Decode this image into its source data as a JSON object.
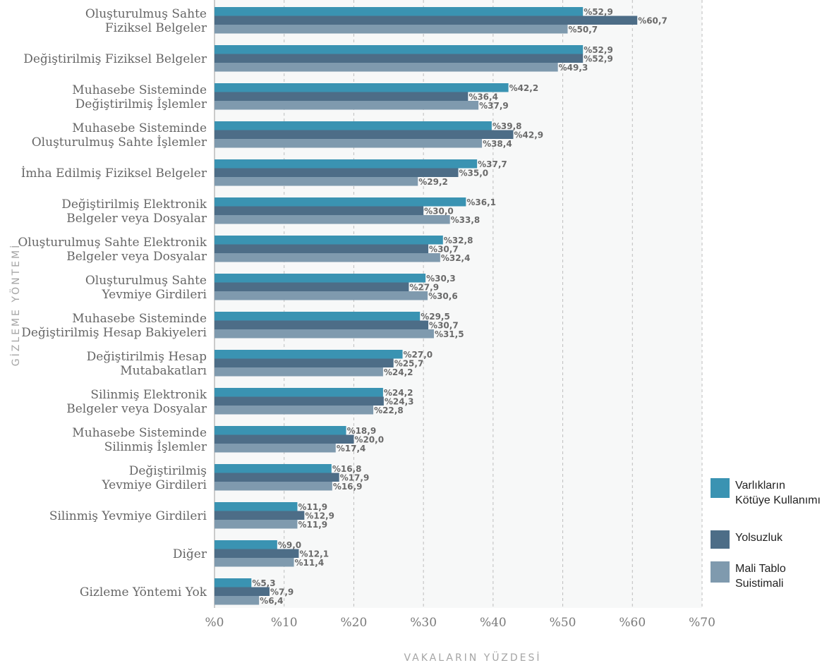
{
  "chart_data": {
    "type": "bar",
    "orientation": "horizontal",
    "xlabel": "VAKALARIN YÜZDESİ",
    "ylabel": "GİZLEME YÖNTEMİ",
    "xlim": [
      0,
      70
    ],
    "xticks": [
      "%0",
      "%10",
      "%20",
      "%30",
      "%40",
      "%50",
      "%60",
      "%70"
    ],
    "grid": "vertical-dashed",
    "legend_position": "right",
    "categories": [
      [
        "Oluşturulmuş Sahte",
        "Fiziksel Belgeler"
      ],
      [
        "Değiştirilmiş Fiziksel Belgeler"
      ],
      [
        "Muhasebe Sisteminde",
        "Değiştirilmiş İşlemler"
      ],
      [
        "Muhasebe Sisteminde",
        "Oluşturulmuş Sahte İşlemler"
      ],
      [
        "İmha Edilmiş Fiziksel Belgeler"
      ],
      [
        "Değiştirilmiş Elektronik",
        "Belgeler veya Dosyalar"
      ],
      [
        "Oluşturulmuş Sahte Elektronik",
        "Belgeler veya Dosyalar"
      ],
      [
        "Oluşturulmuş Sahte",
        "Yevmiye Girdileri"
      ],
      [
        "Muhasebe Sisteminde",
        "Değiştirilmiş Hesap Bakiyeleri"
      ],
      [
        "Değiştirilmiş Hesap",
        "Mutabakatları"
      ],
      [
        "Silinmiş Elektronik",
        "Belgeler veya Dosyalar"
      ],
      [
        "Muhasebe Sisteminde",
        "Silinmiş İşlemler"
      ],
      [
        "Değiştirilmiş",
        "Yevmiye Girdileri"
      ],
      [
        "Silinmiş Yevmiye Girdileri"
      ],
      [
        "Diğer"
      ],
      [
        "Gizleme Yöntemi Yok"
      ]
    ],
    "series": [
      {
        "name": [
          "Varlıkların",
          "Kötüye Kullanımı"
        ],
        "color": "#3a93b2",
        "values": [
          52.9,
          52.9,
          42.2,
          39.8,
          37.7,
          36.1,
          32.8,
          30.3,
          29.5,
          27.0,
          24.2,
          18.9,
          16.8,
          11.9,
          9.0,
          5.3
        ],
        "labels": [
          "%52,9",
          "%52,9",
          "%42,2",
          "%39,8",
          "%37,7",
          "%36,1",
          "%32,8",
          "%30,3",
          "%29,5",
          "%27,0",
          "%24,2",
          "%18,9",
          "%16,8",
          "%11,9",
          "%9,0",
          "%5,3"
        ]
      },
      {
        "name": [
          "Yolsuzluk"
        ],
        "color": "#4d6d87",
        "values": [
          60.7,
          52.9,
          36.4,
          42.9,
          35.0,
          30.0,
          30.7,
          27.9,
          30.7,
          25.7,
          24.3,
          20.0,
          17.9,
          12.9,
          12.1,
          7.9
        ],
        "labels": [
          "%60,7",
          "%52,9",
          "%36,4",
          "%42,9",
          "%35,0",
          "%30,0",
          "%30,7",
          "%27,9",
          "%30,7",
          "%25,7",
          "%24,3",
          "%20,0",
          "%17,9",
          "%12,9",
          "%12,1",
          "%7,9"
        ]
      },
      {
        "name": [
          "Mali Tablo",
          "Suistimali"
        ],
        "color": "#7f9aae",
        "values": [
          50.7,
          49.3,
          37.9,
          38.4,
          29.2,
          33.8,
          32.4,
          30.6,
          31.5,
          24.2,
          22.8,
          17.4,
          16.9,
          11.9,
          11.4,
          6.4
        ],
        "labels": [
          "%50,7",
          "%49,3",
          "%37,9",
          "%38,4",
          "%29,2",
          "%33,8",
          "%32,4",
          "%30,6",
          "%31,5",
          "%24,2",
          "%22,8",
          "%17,4",
          "%16,9",
          "%11,9",
          "%11,4",
          "%6,4"
        ]
      }
    ]
  },
  "colors": {
    "plot_background": "#f7f8f8",
    "grid": "#bdbdbd",
    "axis_line": "#9a9a9a"
  }
}
